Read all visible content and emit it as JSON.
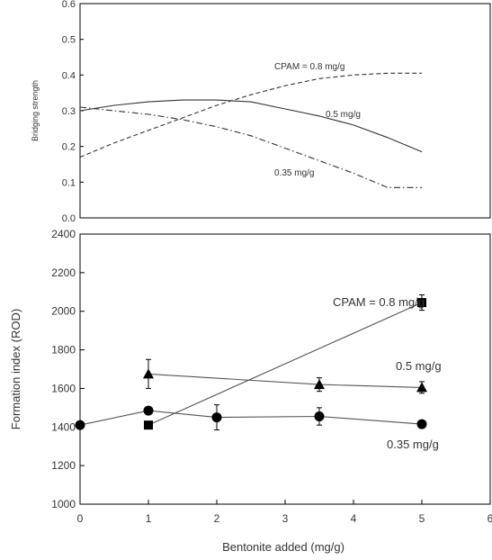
{
  "chart_data": [
    {
      "type": "line",
      "title": "",
      "xlabel": "",
      "ylabel": "Bridging strength",
      "xlim": [
        0,
        6
      ],
      "ylim": [
        0.0,
        0.6
      ],
      "yticks": [
        "0.0",
        "0.1",
        "0.2",
        "0.3",
        "0.4",
        "0.5",
        "0.6"
      ],
      "grid": false,
      "series": [
        {
          "name": "CPAM = 0.8 mg/g",
          "line_style": "dashed",
          "x": [
            0,
            0.5,
            1,
            1.5,
            2,
            2.5,
            3,
            3.5,
            4,
            4.5,
            5
          ],
          "y": [
            0.17,
            0.21,
            0.245,
            0.28,
            0.315,
            0.345,
            0.37,
            0.39,
            0.4,
            0.405,
            0.405
          ]
        },
        {
          "name": "0.5 mg/g",
          "line_style": "solid",
          "x": [
            0,
            0.5,
            1,
            1.5,
            2,
            2.5,
            3,
            3.5,
            4,
            4.5,
            5
          ],
          "y": [
            0.3,
            0.315,
            0.325,
            0.33,
            0.33,
            0.325,
            0.305,
            0.285,
            0.26,
            0.225,
            0.185
          ]
        },
        {
          "name": "0.35 mg/g",
          "line_style": "dash-dot",
          "x": [
            0,
            0.5,
            1,
            1.5,
            2,
            2.5,
            3,
            3.5,
            4,
            4.5,
            5
          ],
          "y": [
            0.31,
            0.3,
            0.29,
            0.275,
            0.255,
            0.23,
            0.195,
            0.16,
            0.125,
            0.085,
            0.085
          ]
        }
      ]
    },
    {
      "type": "line",
      "title": "",
      "xlabel": "Bentonite added (mg/g)",
      "ylabel": "Formation index (ROD)",
      "xlim": [
        0,
        6
      ],
      "ylim": [
        1000,
        2400
      ],
      "xticks": [
        "0",
        "1",
        "2",
        "3",
        "4",
        "5",
        "6"
      ],
      "yticks": [
        "1000",
        "1200",
        "1400",
        "1600",
        "1800",
        "2000",
        "2200",
        "2400"
      ],
      "grid": false,
      "series": [
        {
          "name": "CPAM = 0.8 mg/g",
          "marker": "square",
          "x": [
            1,
            5
          ],
          "y": [
            1410,
            2045
          ],
          "error": [
            0,
            40
          ]
        },
        {
          "name": "0.5 mg/g",
          "marker": "triangle",
          "x": [
            1,
            3.5,
            5
          ],
          "y": [
            1675,
            1620,
            1605
          ],
          "error": [
            75,
            35,
            30
          ]
        },
        {
          "name": "0.35 mg/g",
          "marker": "circle",
          "x": [
            0,
            1,
            2,
            3.5,
            5
          ],
          "y": [
            1410,
            1485,
            1450,
            1455,
            1415
          ],
          "error": [
            0,
            0,
            65,
            45,
            0
          ]
        }
      ]
    }
  ]
}
